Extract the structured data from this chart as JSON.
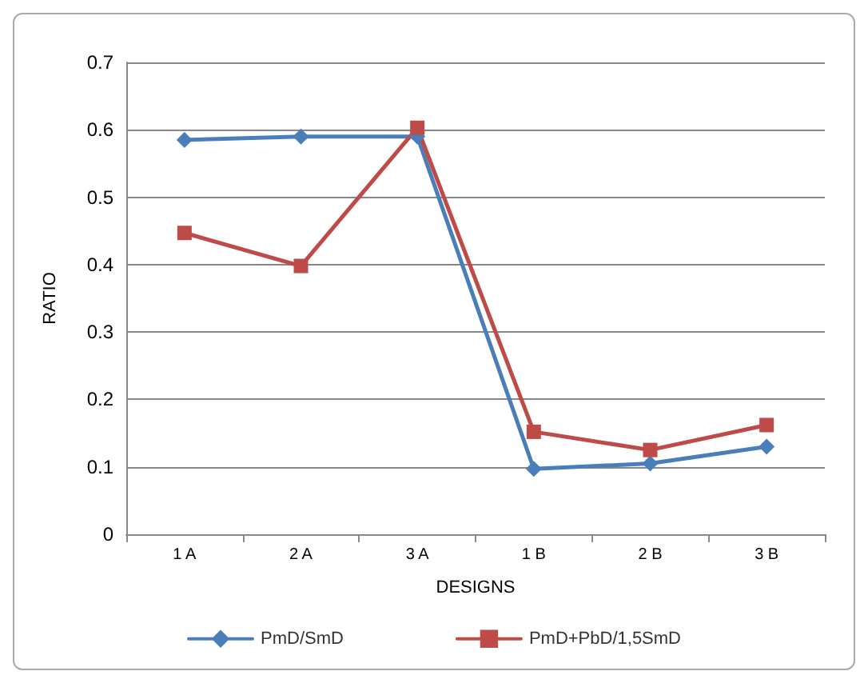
{
  "chart_data": {
    "type": "line",
    "xlabel": "DESIGNS",
    "ylabel": "RATIO",
    "categories": [
      "1 A",
      "2 A",
      "3 A",
      "1 B",
      "2 B",
      "3 B"
    ],
    "series": [
      {
        "name": "PmD/SmD",
        "color": "#4a7ebb",
        "marker": "diamond",
        "values": [
          0.585,
          0.59,
          0.59,
          0.097,
          0.105,
          0.13
        ]
      },
      {
        "name": "PmD+PbD/1,5SmD",
        "color": "#be4b48",
        "marker": "square",
        "values": [
          0.447,
          0.398,
          0.603,
          0.152,
          0.125,
          0.162
        ]
      }
    ],
    "ylim": [
      0,
      0.7
    ],
    "yticks": [
      0,
      0.1,
      0.2,
      0.3,
      0.4,
      0.5,
      0.6,
      0.7
    ],
    "grid": "y",
    "legend": "bottom",
    "line_style": "solid"
  }
}
